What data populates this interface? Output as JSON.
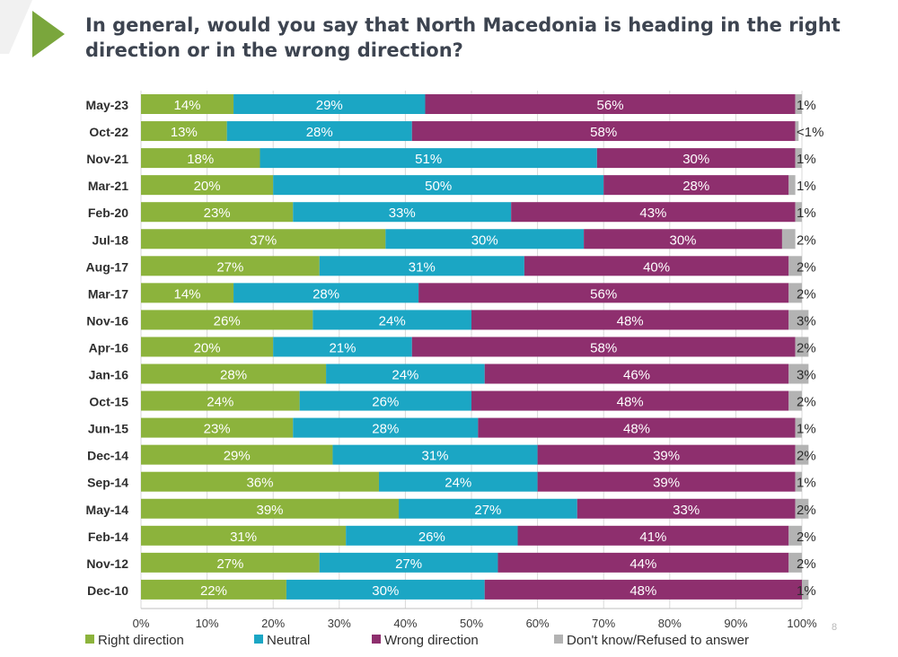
{
  "slide": {
    "title": "In general, would you say that North Macedonia is heading in the right direction or in the wrong direction?",
    "page_number": "8",
    "accent_color": "#7aa63c"
  },
  "chart_data": {
    "type": "bar",
    "orientation": "horizontal",
    "stacked": true,
    "percent": true,
    "categories": [
      "May-23",
      "Oct-22",
      "Nov-21",
      "Mar-21",
      "Feb-20",
      "Jul-18",
      "Aug-17",
      "Mar-17",
      "Nov-16",
      "Apr-16",
      "Jan-16",
      "Oct-15",
      "Jun-15",
      "Dec-14",
      "Sep-14",
      "May-14",
      "Feb-14",
      "Nov-12",
      "Dec-10"
    ],
    "series": [
      {
        "name": "Right direction",
        "color": "#8cb33c",
        "values": [
          14,
          13,
          18,
          20,
          23,
          37,
          27,
          14,
          26,
          20,
          28,
          24,
          23,
          29,
          36,
          39,
          31,
          27,
          22
        ],
        "labels": [
          "14%",
          "13%",
          "18%",
          "20%",
          "23%",
          "37%",
          "27%",
          "14%",
          "26%",
          "20%",
          "28%",
          "24%",
          "23%",
          "29%",
          "36%",
          "39%",
          "31%",
          "27%",
          "22%"
        ]
      },
      {
        "name": "Neutral",
        "color": "#1ba6c4",
        "values": [
          29,
          28,
          51,
          50,
          33,
          30,
          31,
          28,
          24,
          21,
          24,
          26,
          28,
          31,
          24,
          27,
          26,
          27,
          30
        ],
        "labels": [
          "29%",
          "28%",
          "51%",
          "50%",
          "33%",
          "30%",
          "31%",
          "28%",
          "24%",
          "21%",
          "24%",
          "26%",
          "28%",
          "31%",
          "24%",
          "27%",
          "26%",
          "27%",
          "30%"
        ]
      },
      {
        "name": "Wrong direction",
        "color": "#8e2f6e",
        "values": [
          56,
          58,
          30,
          28,
          43,
          30,
          40,
          56,
          48,
          58,
          46,
          48,
          48,
          39,
          39,
          33,
          41,
          44,
          48
        ],
        "labels": [
          "56%",
          "58%",
          "30%",
          "28%",
          "43%",
          "30%",
          "40%",
          "56%",
          "48%",
          "58%",
          "46%",
          "48%",
          "48%",
          "39%",
          "39%",
          "33%",
          "41%",
          "44%",
          "48%"
        ]
      },
      {
        "name": "Don't know/Refused to answer",
        "color": "#b3b3b3",
        "values": [
          1,
          0.5,
          1,
          1,
          1,
          2,
          2,
          2,
          3,
          2,
          3,
          2,
          1,
          2,
          1,
          2,
          2,
          2,
          1
        ],
        "labels": [
          "1%",
          "<1%",
          "1%",
          "1%",
          "1%",
          "2%",
          "2%",
          "2%",
          "3%",
          "2%",
          "3%",
          "2%",
          "1%",
          "2%",
          "1%",
          "2%",
          "2%",
          "2%",
          "1%"
        ]
      }
    ],
    "xlim": [
      0,
      100
    ],
    "x_ticks": [
      "0%",
      "10%",
      "20%",
      "30%",
      "40%",
      "50%",
      "60%",
      "70%",
      "80%",
      "90%",
      "100%"
    ],
    "grid": true,
    "legend_position": "bottom"
  }
}
